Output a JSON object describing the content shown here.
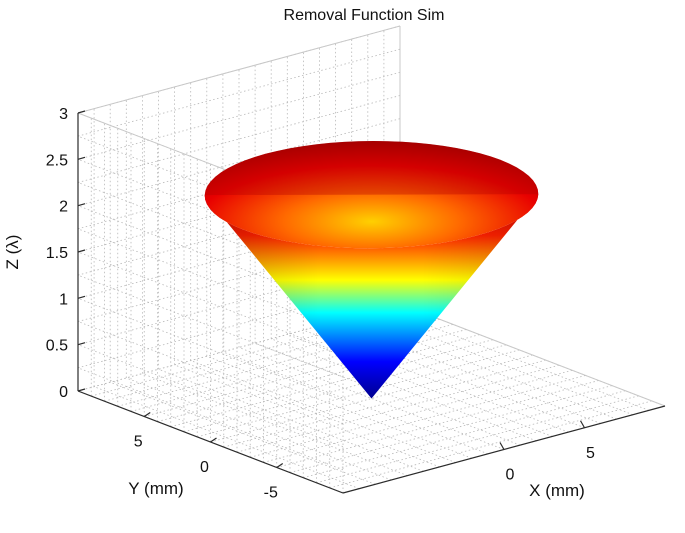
{
  "chart_data": {
    "type": "surface3d",
    "title": "Removal Function Sim",
    "xlabel": "X (mm)",
    "ylabel": "Y (mm)",
    "zlabel": "Z (λ)",
    "xlim": [
      -10,
      10
    ],
    "ylim": [
      -10,
      10
    ],
    "zlim": [
      0,
      3
    ],
    "x_ticks": [
      0,
      5
    ],
    "y_ticks": [
      -5,
      0,
      5
    ],
    "z_ticks": [
      0,
      0.5,
      1,
      1.5,
      2,
      2.5,
      3
    ],
    "z_tick_labels": [
      "0",
      "0.5",
      "1",
      "1.5",
      "2",
      "2.5",
      "3"
    ],
    "x_tick_labels": [
      "0",
      "5"
    ],
    "y_tick_labels": [
      "-5",
      "0",
      "5"
    ],
    "grid": true,
    "box": true,
    "colormap": "jet",
    "surface": {
      "shape": "cone",
      "apex": [
        0,
        0,
        0
      ],
      "top_radius_mm": 8,
      "top_z": 2.2,
      "z_min": 0,
      "z_max": 2.2
    }
  },
  "colors": {
    "background": "#ffffff",
    "axis": "#2b2b2b",
    "grid": "#b8b8b8",
    "colormap_stops": [
      "#00008f",
      "#0000ff",
      "#00ffff",
      "#ffff00",
      "#ff0000",
      "#800000"
    ]
  }
}
